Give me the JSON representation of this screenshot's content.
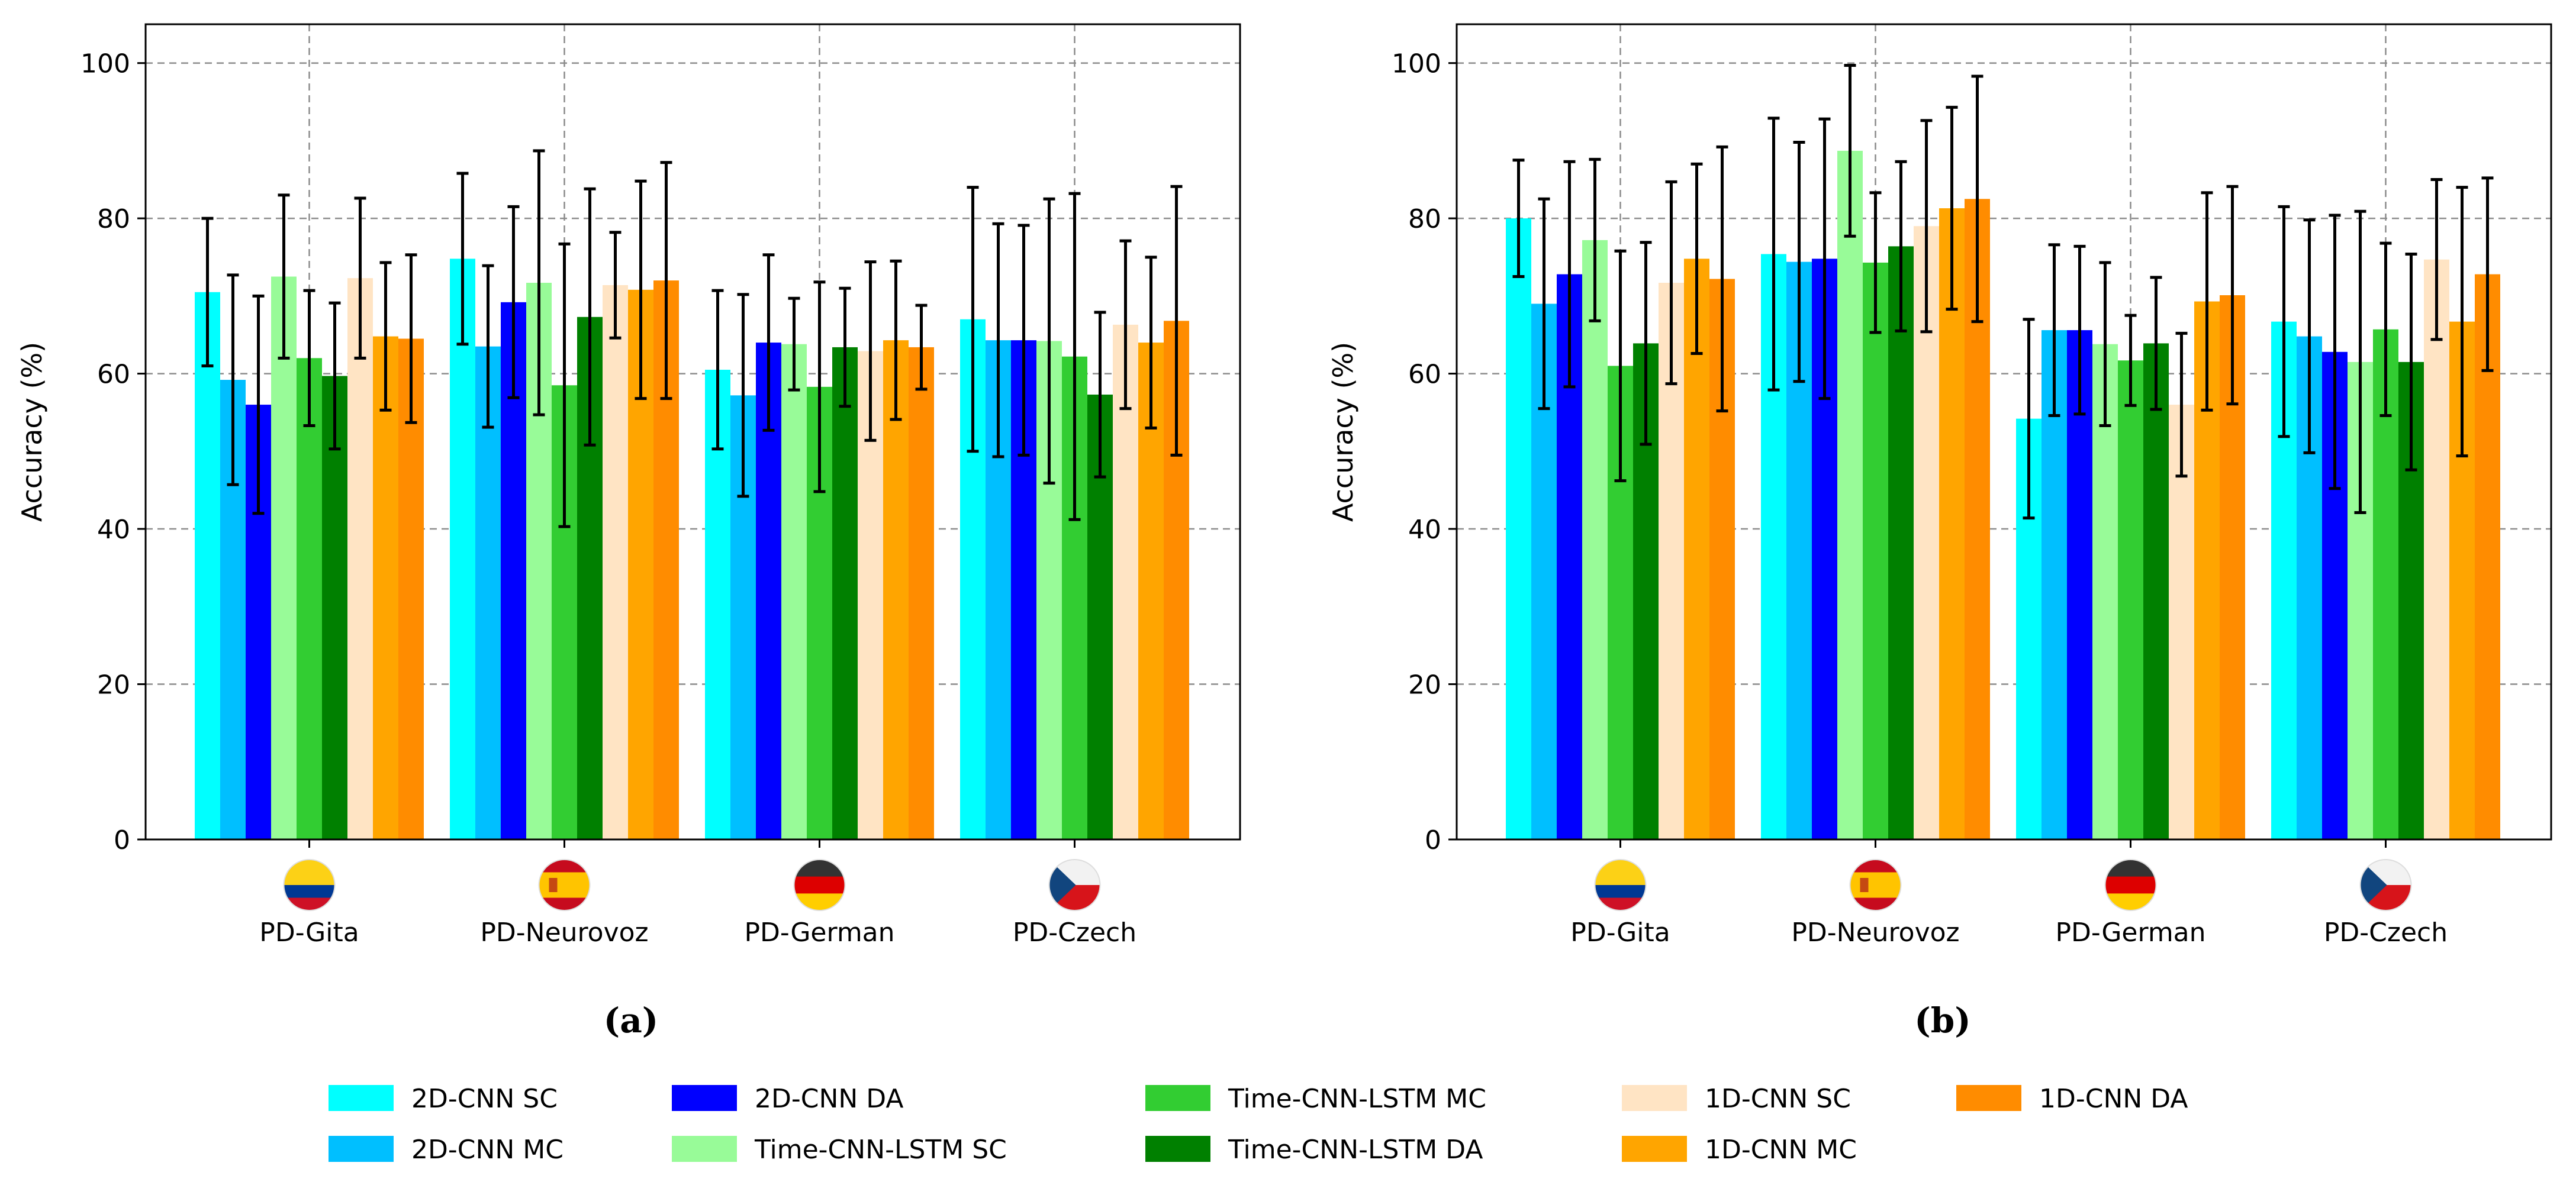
{
  "figure": {
    "legend": {
      "entries": [
        {
          "name": "2D-CNN SC",
          "color": "#00FFFF"
        },
        {
          "name": "2D-CNN MC",
          "color": "#00BFFF"
        },
        {
          "name": "2D-CNN DA",
          "color": "#0000FF"
        },
        {
          "name": "Time-CNN-LSTM SC",
          "color": "#98FB98"
        },
        {
          "name": "Time-CNN-LSTM MC",
          "color": "#32CD32"
        },
        {
          "name": "Time-CNN-LSTM DA",
          "color": "#008000"
        },
        {
          "name": "1D-CNN SC",
          "color": "#FFE4C4"
        },
        {
          "name": "1D-CNN MC",
          "color": "#FFA500"
        },
        {
          "name": "1D-CNN DA",
          "color": "#FF8C00"
        }
      ]
    },
    "flags": [
      {
        "country": "Colombia",
        "icon": "colombia-flag-icon",
        "stripes": [
          "#FCD116",
          "#003893",
          "#CE1126"
        ]
      },
      {
        "country": "Spain",
        "icon": "spain-flag-icon",
        "stripes": [
          "#C60B1E",
          "#FFC400",
          "#C60B1E"
        ]
      },
      {
        "country": "Germany",
        "icon": "germany-flag-icon",
        "stripes": [
          "#333333",
          "#DD0000",
          "#FFCE00"
        ]
      },
      {
        "country": "Czech Republic",
        "icon": "czech-flag-icon",
        "stripes": [
          "#F2F2F2",
          "#D7141A",
          "#11457E"
        ]
      }
    ]
  },
  "chart_data": [
    {
      "type": "bar",
      "panel_label": "(a)",
      "title": "",
      "xlabel": "",
      "ylabel": "Accuracy (%)",
      "ylim": [
        0,
        105
      ],
      "yticks": [
        "0",
        "20",
        "40",
        "60",
        "80",
        "100"
      ],
      "grid": true,
      "categories": [
        "PD-Gita",
        "PD-Neurovoz",
        "PD-German",
        "PD-Czech"
      ],
      "series": [
        {
          "name": "2D-CNN SC",
          "color": "#00FFFF",
          "values": [
            70.5,
            74.8,
            60.5,
            67.0
          ],
          "errors": [
            9.5,
            11.0,
            10.2,
            17.0
          ]
        },
        {
          "name": "2D-CNN MC",
          "color": "#00BFFF",
          "values": [
            59.2,
            63.5,
            57.2,
            64.3
          ],
          "errors": [
            13.5,
            10.4,
            13.0,
            15.0
          ]
        },
        {
          "name": "2D-CNN DA",
          "color": "#0000FF",
          "values": [
            56.0,
            69.2,
            64.0,
            64.3
          ],
          "errors": [
            14.0,
            12.3,
            11.3,
            14.8
          ]
        },
        {
          "name": "Time-CNN-LSTM SC",
          "color": "#98FB98",
          "values": [
            72.5,
            71.7,
            63.8,
            64.2
          ],
          "errors": [
            10.5,
            17.0,
            5.9,
            18.3
          ]
        },
        {
          "name": "Time-CNN-LSTM MC",
          "color": "#32CD32",
          "values": [
            62.0,
            58.5,
            58.3,
            62.2
          ],
          "errors": [
            8.7,
            18.2,
            13.5,
            21.0
          ]
        },
        {
          "name": "Time-CNN-LSTM DA",
          "color": "#008000",
          "values": [
            59.7,
            67.3,
            63.4,
            57.3
          ],
          "errors": [
            9.4,
            16.5,
            7.6,
            10.6
          ]
        },
        {
          "name": "1D-CNN SC",
          "color": "#FFE4C4",
          "values": [
            72.3,
            71.4,
            62.9,
            66.3
          ],
          "errors": [
            10.3,
            6.8,
            11.5,
            10.8
          ]
        },
        {
          "name": "1D-CNN MC",
          "color": "#FFA500",
          "values": [
            64.8,
            70.8,
            64.3,
            64.0
          ],
          "errors": [
            9.5,
            14.0,
            10.2,
            11.0
          ]
        },
        {
          "name": "1D-CNN DA",
          "color": "#FF8C00",
          "values": [
            64.5,
            72.0,
            63.4,
            66.8
          ],
          "errors": [
            10.8,
            15.2,
            5.4,
            17.3
          ]
        }
      ]
    },
    {
      "type": "bar",
      "panel_label": "(b)",
      "title": "",
      "xlabel": "",
      "ylabel": "Accuracy (%)",
      "ylim": [
        0,
        105
      ],
      "yticks": [
        "0",
        "20",
        "40",
        "60",
        "80",
        "100"
      ],
      "grid": true,
      "categories": [
        "PD-Gita",
        "PD-Neurovoz",
        "PD-German",
        "PD-Czech"
      ],
      "series": [
        {
          "name": "2D-CNN SC",
          "color": "#00FFFF",
          "values": [
            80.0,
            75.4,
            54.2,
            66.7
          ],
          "errors": [
            7.5,
            17.5,
            12.8,
            14.8
          ]
        },
        {
          "name": "2D-CNN MC",
          "color": "#00BFFF",
          "values": [
            69.0,
            74.4,
            65.6,
            64.8
          ],
          "errors": [
            13.5,
            15.4,
            11.0,
            15.0
          ]
        },
        {
          "name": "2D-CNN DA",
          "color": "#0000FF",
          "values": [
            72.8,
            74.8,
            65.6,
            62.8
          ],
          "errors": [
            14.5,
            18.0,
            10.8,
            17.6
          ]
        },
        {
          "name": "Time-CNN-LSTM SC",
          "color": "#98FB98",
          "values": [
            77.2,
            88.7,
            63.8,
            61.5
          ],
          "errors": [
            10.4,
            11.0,
            10.5,
            19.4
          ]
        },
        {
          "name": "Time-CNN-LSTM MC",
          "color": "#32CD32",
          "values": [
            61.0,
            74.3,
            61.7,
            65.7
          ],
          "errors": [
            14.8,
            9.0,
            5.8,
            11.1
          ]
        },
        {
          "name": "Time-CNN-LSTM DA",
          "color": "#008000",
          "values": [
            63.9,
            76.4,
            63.9,
            61.5
          ],
          "errors": [
            13.0,
            10.9,
            8.5,
            13.9
          ]
        },
        {
          "name": "1D-CNN SC",
          "color": "#FFE4C4",
          "values": [
            71.7,
            79.0,
            56.0,
            74.7
          ],
          "errors": [
            13.0,
            13.6,
            9.2,
            10.3
          ]
        },
        {
          "name": "1D-CNN MC",
          "color": "#FFA500",
          "values": [
            74.8,
            81.3,
            69.3,
            66.7
          ],
          "errors": [
            12.2,
            13.0,
            14.0,
            17.3
          ]
        },
        {
          "name": "1D-CNN DA",
          "color": "#FF8C00",
          "values": [
            72.2,
            82.5,
            70.1,
            72.8
          ],
          "errors": [
            17.0,
            15.8,
            14.0,
            12.4
          ]
        }
      ]
    }
  ]
}
